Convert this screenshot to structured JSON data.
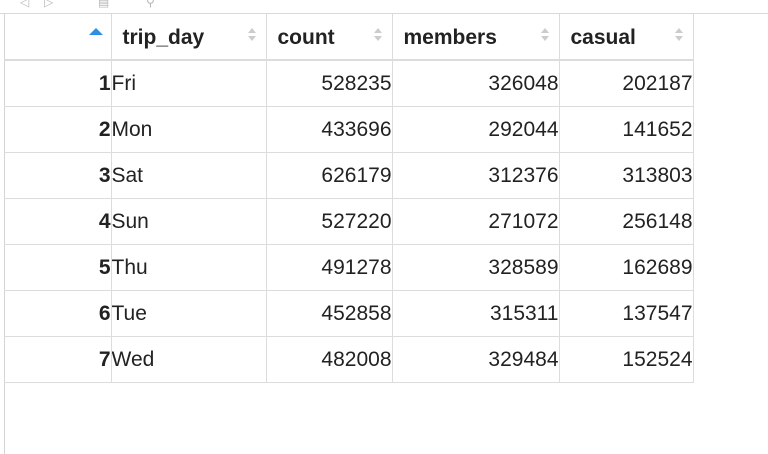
{
  "table": {
    "columns": [
      "trip_day",
      "count",
      "members",
      "casual"
    ],
    "sort": {
      "column": "row-index",
      "direction": "ascending"
    },
    "rows": [
      {
        "index": "1",
        "trip_day": "Fri",
        "count": "528235",
        "members": "326048",
        "casual": "202187"
      },
      {
        "index": "2",
        "trip_day": "Mon",
        "count": "433696",
        "members": "292044",
        "casual": "141652"
      },
      {
        "index": "3",
        "trip_day": "Sat",
        "count": "626179",
        "members": "312376",
        "casual": "313803"
      },
      {
        "index": "4",
        "trip_day": "Sun",
        "count": "527220",
        "members": "271072",
        "casual": "256148"
      },
      {
        "index": "5",
        "trip_day": "Thu",
        "count": "491278",
        "members": "328589",
        "casual": "162689"
      },
      {
        "index": "6",
        "trip_day": "Tue",
        "count": "452858",
        "members": "315311",
        "casual": "137547"
      },
      {
        "index": "7",
        "trip_day": "Wed",
        "count": "482008",
        "members": "329484",
        "casual": "152524"
      }
    ]
  },
  "colors": {
    "sort_active": "#2d8fe3",
    "sort_inactive": "#cccccc",
    "grid_line": "#dcdcdc",
    "text": "#222222"
  },
  "toolbar": {
    "icons": [
      "back-arrow-icon",
      "forward-arrow-icon",
      "filter-icon",
      "search-icon"
    ]
  }
}
